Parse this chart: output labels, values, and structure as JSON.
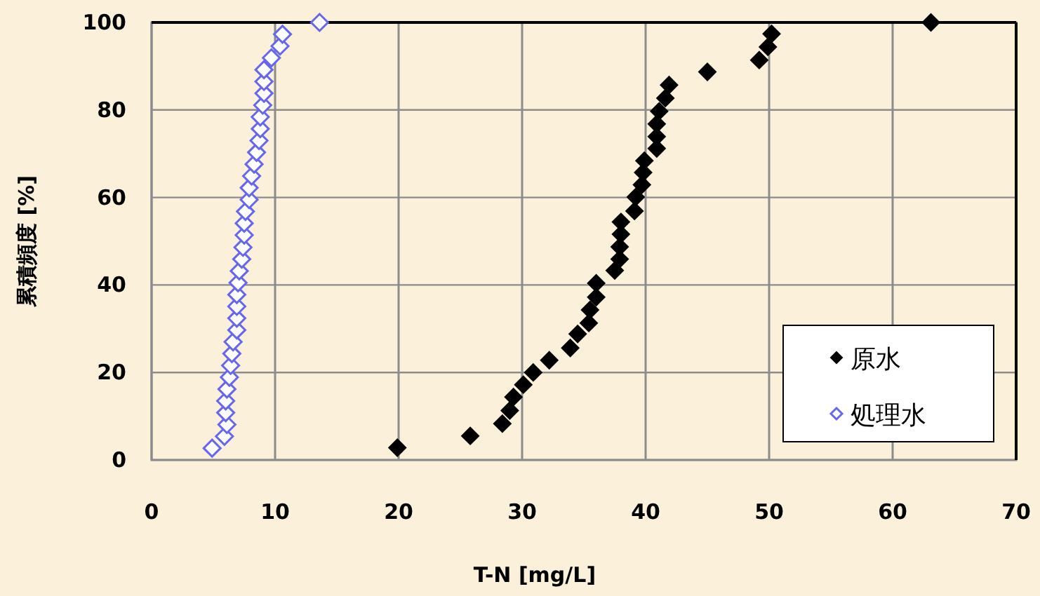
{
  "chart_data": {
    "type": "scatter",
    "xlabel": "T-N  [mg/L]",
    "ylabel": "累積頻度 [%]",
    "xlim": [
      0,
      70
    ],
    "ylim": [
      0,
      100
    ],
    "xticks": [
      0,
      10,
      20,
      30,
      40,
      50,
      60,
      70
    ],
    "yticks": [
      0,
      20,
      40,
      60,
      80,
      100
    ],
    "grid": true,
    "legend": "bottom right",
    "marker": "diamond",
    "series": [
      {
        "name": "原水",
        "color": "#000000",
        "x": [
          19.9,
          25.8,
          28.4,
          29.0,
          29.3,
          30.1,
          30.9,
          32.2,
          33.9,
          34.5,
          35.4,
          35.5,
          36.0,
          36.0,
          37.5,
          37.9,
          37.9,
          38.0,
          38.0,
          39.1,
          39.2,
          39.7,
          39.8,
          39.9,
          40.9,
          40.9,
          40.9,
          41.1,
          41.6,
          41.9,
          45.0,
          49.2,
          49.9,
          50.2,
          63.1
        ],
        "values": [
          2.8,
          5.5,
          8.3,
          11.3,
          14.4,
          17.2,
          20.0,
          22.8,
          25.6,
          28.8,
          31.3,
          34.3,
          37.2,
          40.4,
          43.3,
          45.9,
          48.7,
          51.6,
          54.4,
          56.9,
          60.1,
          62.9,
          65.7,
          68.4,
          71.2,
          73.9,
          76.8,
          79.7,
          82.7,
          85.7,
          88.7,
          91.4,
          94.4,
          97.4,
          100
        ]
      },
      {
        "name": "処理水",
        "color": "#6666ee",
        "x": [
          4.9,
          5.9,
          6.1,
          6.0,
          6.0,
          6.1,
          6.3,
          6.4,
          6.5,
          6.6,
          6.9,
          6.9,
          6.9,
          6.9,
          7.0,
          7.1,
          7.3,
          7.4,
          7.5,
          7.5,
          7.6,
          7.9,
          7.9,
          8.1,
          8.3,
          8.5,
          8.7,
          8.8,
          8.8,
          9.0,
          9.1,
          9.1,
          9.1,
          9.7,
          10.4,
          10.6,
          13.6
        ],
        "values": [
          2.7,
          5.4,
          8.1,
          10.8,
          13.5,
          16.2,
          18.9,
          21.6,
          24.3,
          27.0,
          29.7,
          32.4,
          35.1,
          37.8,
          40.5,
          43.2,
          45.9,
          48.6,
          51.4,
          54.1,
          56.8,
          59.5,
          62.2,
          64.9,
          67.6,
          70.3,
          73.0,
          75.7,
          78.4,
          81.1,
          83.8,
          86.5,
          89.2,
          91.9,
          94.6,
          97.3,
          100
        ]
      }
    ]
  }
}
